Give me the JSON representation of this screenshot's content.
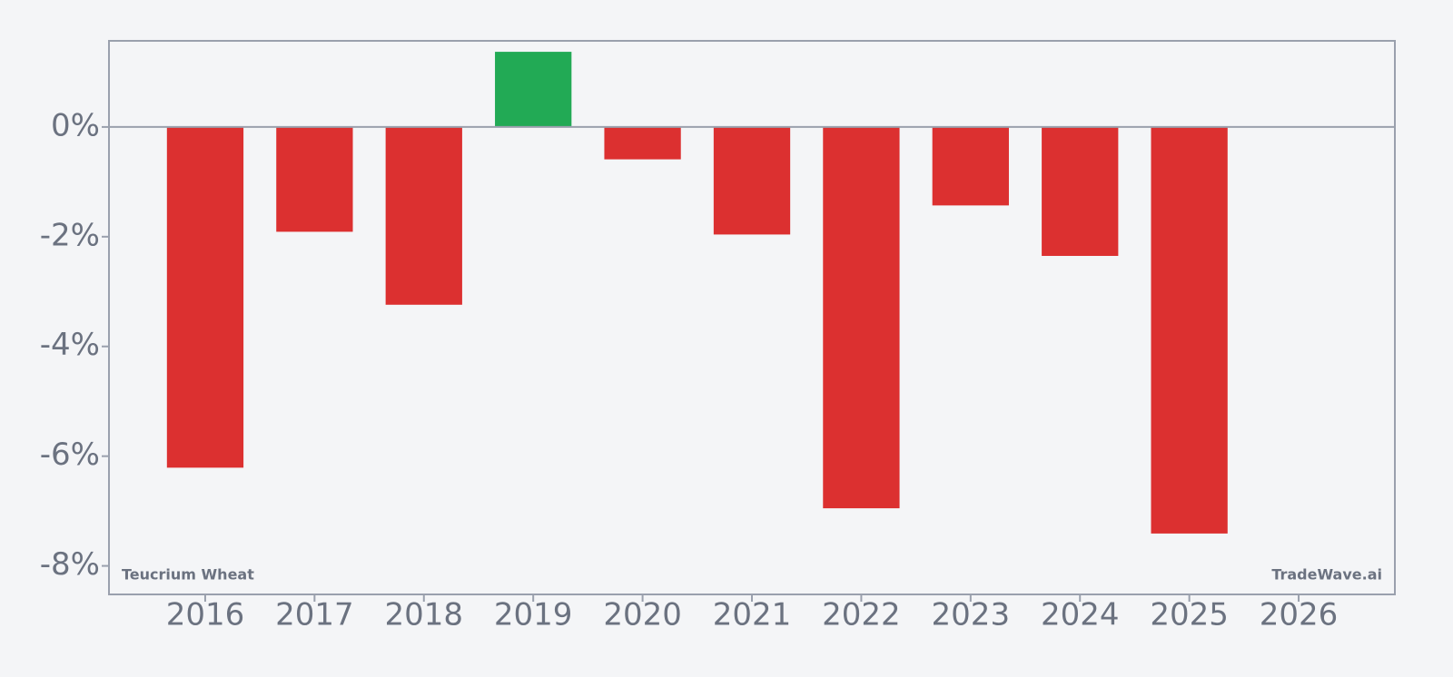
{
  "chart_data": {
    "type": "bar",
    "categories": [
      "2016",
      "2017",
      "2018",
      "2019",
      "2020",
      "2021",
      "2022",
      "2023",
      "2024",
      "2025",
      "2026"
    ],
    "values": [
      -6.21,
      -1.91,
      -3.24,
      1.37,
      -0.59,
      -1.96,
      -6.95,
      -1.43,
      -2.35,
      -7.41,
      null
    ],
    "positive_color": "#22aa55",
    "negative_color": "#dc3030",
    "ylim": [
      -8.52,
      1.57
    ],
    "yticks": [
      {
        "value": 0,
        "label": "0%"
      },
      {
        "value": -2,
        "label": "-2%"
      },
      {
        "value": -4,
        "label": "-4%"
      },
      {
        "value": -6,
        "label": "-6%"
      },
      {
        "value": -8,
        "label": "-8%"
      }
    ],
    "annotations": [
      "Teucrium Wheat",
      "TradeWave.ai"
    ]
  }
}
